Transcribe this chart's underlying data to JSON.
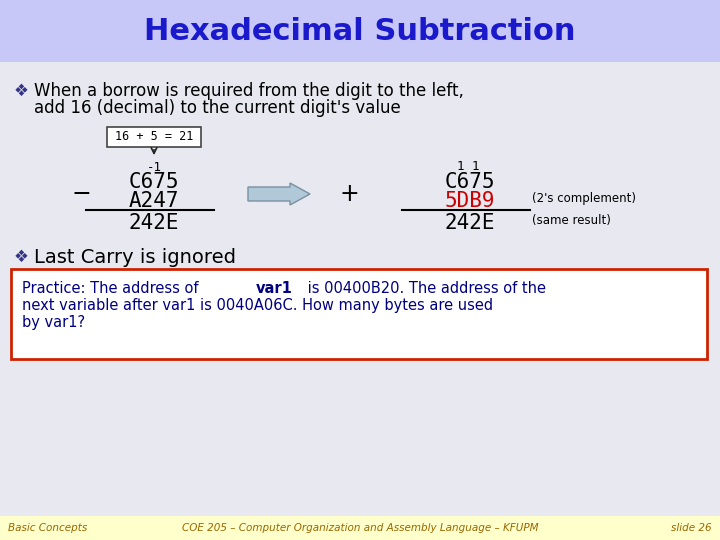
{
  "title": "Hexadecimal Subtraction",
  "title_color": "#1a1acc",
  "title_bg": "#c8c8f8",
  "body_bg": "#e8e8f0",
  "slide_bg": "#e8e8f0",
  "bullet1_line1": "When a borrow is required from the digit to the left,",
  "bullet1_line2": "add 16 (decimal) to the current digit's value",
  "bullet2": "Last Carry is ignored",
  "bullet_color": "#000000",
  "box_label": "16 + 5 = 21",
  "minus_label": "-1",
  "left_op1": "C675",
  "left_op2": "A247",
  "left_result": "242E",
  "carry_label": "1 1",
  "right_op1": "C675",
  "right_op2": "5DB9",
  "right_result": "242E",
  "right_op2_color": "#cc0000",
  "complement_label": "(2's complement)",
  "same_result_label": "(same result)",
  "practice_line1a": "Practice: The address of ",
  "practice_line1b": "var1",
  "practice_line1c": " is 00400B20. The address of the",
  "practice_line2": "next variable after var1 is 0040A06C. How many bytes are used",
  "practice_line3": "by var1?",
  "practice_bg": "#ffffff",
  "practice_border": "#cc2200",
  "practice_color": "#000080",
  "footer_bg": "#ffffcc",
  "footer_left": "Basic Concepts",
  "footer_center": "COE 205 – Computer Organization and Assembly Language – KFUPM",
  "footer_right": "slide 26",
  "footer_color": "#996600"
}
